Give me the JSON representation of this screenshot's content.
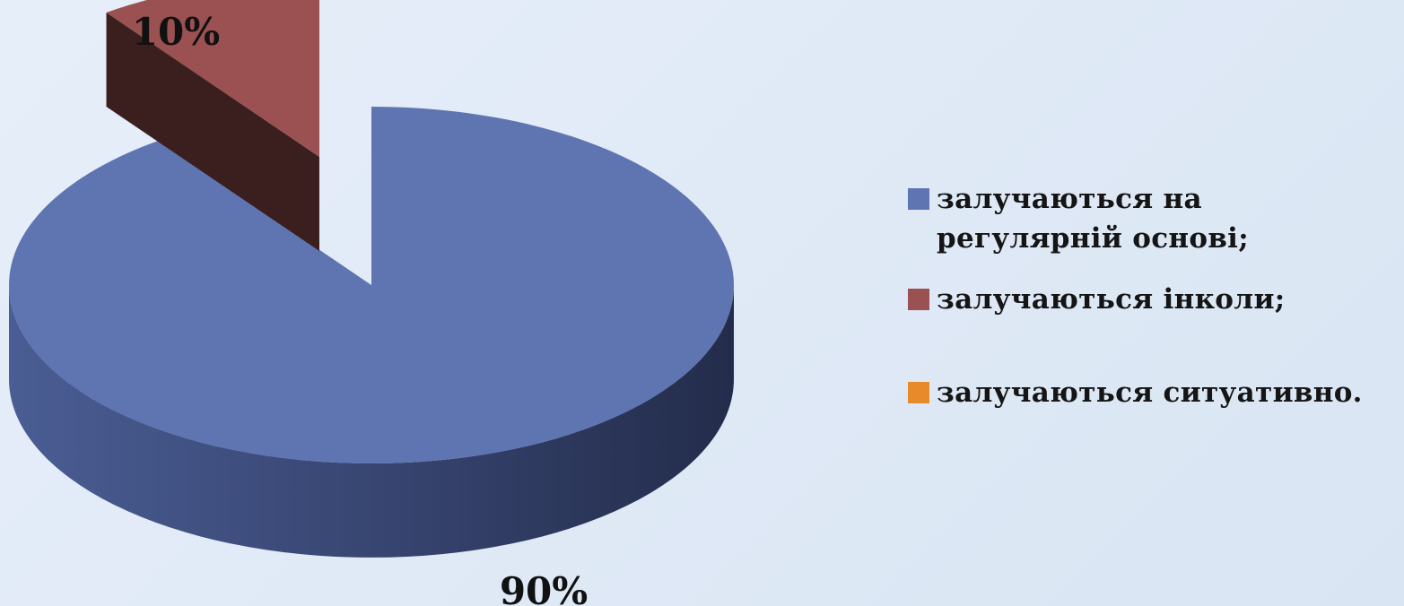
{
  "chart_data": {
    "type": "pie",
    "three_d": true,
    "exploded_slice": 1,
    "slices": [
      {
        "label": "залучаються на регулярній основі;",
        "value": 90,
        "data_label": "90%",
        "color": "#5f75b1"
      },
      {
        "label": "залучаються інколи;",
        "value": 10,
        "data_label": "10%",
        "color": "#9b5151"
      },
      {
        "label": "залучаються ситуативно.",
        "value": 0,
        "data_label": "",
        "color": "#e8892a"
      }
    ],
    "legend_position": "right"
  }
}
